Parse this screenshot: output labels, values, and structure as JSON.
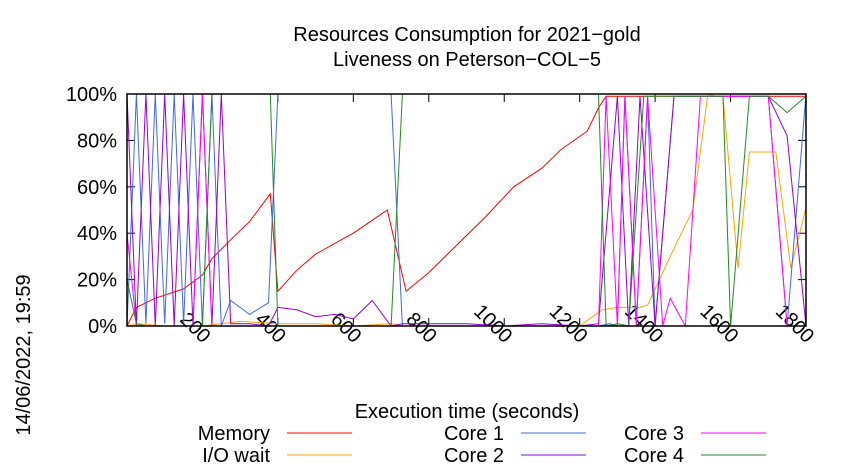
{
  "chart_data": {
    "type": "line",
    "title_lines": [
      "Resources Consumption for 2021−gold",
      "Liveness on Peterson−COL−5"
    ],
    "xlabel": "Execution time (seconds)",
    "ylabel": "",
    "side_label": "14/06/2022, 19:59",
    "xlim": [
      0,
      1800
    ],
    "ylim": [
      0,
      100
    ],
    "x_ticks": [
      200,
      400,
      600,
      800,
      1000,
      1200,
      1400,
      1600,
      1800
    ],
    "x_tick_labels": [
      "200",
      "400",
      "600",
      "800",
      "1000",
      "1200",
      "1400",
      "1600",
      "1800"
    ],
    "y_ticks": [
      0,
      20,
      40,
      60,
      80,
      100
    ],
    "y_tick_labels": [
      "0%",
      "20%",
      "40%",
      "60%",
      "80%",
      "100%"
    ],
    "grid": false,
    "legend_position": "bottom",
    "series": [
      {
        "name": "Memory",
        "color": "#ff0000",
        "x": [
          0,
          25,
          50,
          75,
          150,
          200,
          225,
          280,
          325,
          380,
          400,
          450,
          500,
          600,
          690,
          740,
          800,
          850,
          950,
          1025,
          1100,
          1150,
          1220,
          1250,
          1270,
          1400,
          1500,
          1600,
          1700,
          1800
        ],
        "y": [
          0,
          8,
          10,
          12,
          16,
          22,
          29,
          38,
          45,
          57,
          15,
          24,
          31,
          40,
          50,
          15,
          23,
          31,
          47,
          60,
          68,
          76,
          84,
          94,
          99,
          99,
          99,
          99,
          99,
          99
        ]
      },
      {
        "name": "I/O wait",
        "color": "#ffa500",
        "x": [
          0,
          30,
          100,
          200,
          250,
          300,
          400,
          500,
          600,
          700,
          730,
          800,
          1000,
          1200,
          1260,
          1300,
          1360,
          1380,
          1440,
          1500,
          1540,
          1560,
          1580,
          1620,
          1650,
          1680,
          1720,
          1760,
          1800
        ],
        "y": [
          0,
          1,
          0,
          0,
          1,
          2,
          1,
          1,
          0,
          1,
          0,
          0,
          0,
          0,
          7,
          8,
          8,
          9,
          30,
          50,
          100,
          99,
          99,
          25,
          75,
          75,
          75,
          25,
          51
        ]
      },
      {
        "name": "Core 1",
        "color": "#4169e1",
        "x": [
          0,
          25,
          50,
          75,
          100,
          125,
          150,
          175,
          200,
          225,
          250,
          275,
          325,
          375,
          400,
          450,
          500,
          600,
          700,
          730,
          800,
          900,
          1000,
          1100,
          1200,
          1250,
          1280,
          1300,
          1320,
          1350,
          1380,
          1400,
          1450,
          1500,
          1520,
          1540,
          1560,
          1580,
          1600,
          1620,
          1650,
          1700,
          1750,
          1800
        ],
        "y": [
          0,
          100,
          1,
          100,
          1,
          100,
          1,
          100,
          0,
          100,
          0,
          11,
          5,
          10,
          100,
          100,
          100,
          100,
          100,
          0,
          0,
          0,
          0,
          0,
          0,
          0,
          1,
          0,
          99,
          1,
          99,
          0,
          99,
          99,
          99,
          99,
          99,
          99,
          99,
          99,
          99,
          99,
          0,
          100
        ]
      },
      {
        "name": "Core 2",
        "color": "#9400d3",
        "x": [
          0,
          25,
          50,
          75,
          100,
          125,
          150,
          175,
          200,
          225,
          250,
          275,
          325,
          375,
          400,
          450,
          500,
          550,
          600,
          650,
          700,
          730,
          800,
          900,
          1000,
          1100,
          1200,
          1250,
          1300,
          1330,
          1360,
          1400,
          1450,
          1500,
          1550,
          1600,
          1650,
          1700,
          1750,
          1800
        ],
        "y": [
          100,
          0,
          100,
          0,
          100,
          0,
          100,
          0,
          100,
          0,
          100,
          1,
          1,
          0,
          8,
          7,
          4,
          5,
          3,
          11,
          0,
          1,
          1,
          1,
          0,
          1,
          0,
          1,
          99,
          0,
          99,
          0,
          99,
          99,
          99,
          99,
          99,
          99,
          82,
          0
        ]
      },
      {
        "name": "Core 3",
        "color": "#ff00ff",
        "x": [
          0,
          25,
          50,
          75,
          100,
          125,
          150,
          175,
          200,
          225,
          250,
          275,
          300,
          400,
          500,
          600,
          700,
          730,
          800,
          1000,
          1200,
          1250,
          1270,
          1300,
          1320,
          1350,
          1380,
          1420,
          1440,
          1480,
          1520,
          1560,
          1600,
          1650,
          1700,
          1750,
          1800
        ],
        "y": [
          40,
          0,
          0,
          0,
          0,
          0,
          0,
          0,
          100,
          0,
          0,
          0,
          0,
          0,
          0,
          0,
          0,
          0,
          0,
          0,
          0,
          0,
          99,
          0,
          99,
          0,
          99,
          0,
          12,
          0,
          99,
          99,
          99,
          99,
          99,
          0,
          0
        ]
      },
      {
        "name": "Core 4",
        "color": "#228b22",
        "x": [
          0,
          25,
          50,
          100,
          200,
          225,
          240,
          260,
          300,
          380,
          400,
          500,
          600,
          700,
          730,
          760,
          800,
          900,
          1000,
          1100,
          1200,
          1250,
          1270,
          1300,
          1330,
          1370,
          1400,
          1450,
          1500,
          1550,
          1580,
          1600,
          1650,
          1700,
          1750,
          1800
        ],
        "y": [
          20,
          1,
          0,
          0,
          0,
          100,
          100,
          100,
          100,
          100,
          0,
          0,
          0,
          0,
          100,
          100,
          100,
          100,
          100,
          100,
          100,
          100,
          0,
          1,
          0,
          99,
          99,
          99,
          99,
          99,
          99,
          0,
          99,
          99,
          92,
          99
        ]
      }
    ]
  }
}
